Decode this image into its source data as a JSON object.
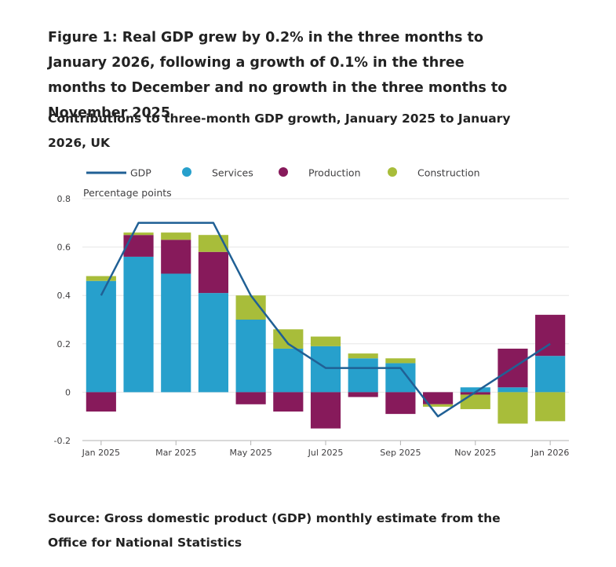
{
  "title": "Figure 1: Real GDP grew by 0.2% in the three months to January 2026, following a growth of 0.1% in the three months to December and no growth in the three months to November 2025",
  "subtitle": "Contributions to three-month GDP growth, January 2025 to January 2026, UK",
  "source": "Source: Gross domestic product (GDP) monthly estimate from the Office for National Statistics",
  "colors": {
    "services": "#27a0cc",
    "production": "#871a5b",
    "construction": "#a8bd3a",
    "gdp": "#206095",
    "grid": "#e6e6e6",
    "axis": "#b3b3b3",
    "text": "#414042"
  },
  "chart_data": {
    "type": "bar",
    "stacked": true,
    "y_unit_label": "Percentage points",
    "ylim": [
      -0.2,
      0.8
    ],
    "yticks": [
      -0.2,
      0,
      0.2,
      0.4,
      0.6,
      0.8
    ],
    "ytick_labels": [
      "-0.2",
      "0",
      "0.2",
      "0.4",
      "0.6",
      "0.8"
    ],
    "categories": [
      "Jan 2025",
      "Feb 2025",
      "Mar 2025",
      "Apr 2025",
      "May 2025",
      "Jun 2025",
      "Jul 2025",
      "Aug 2025",
      "Sep 2025",
      "Oct 2025",
      "Nov 2025",
      "Dec 2025",
      "Jan 2026"
    ],
    "x_tick_labels": [
      "Jan 2025",
      "",
      "Mar 2025",
      "",
      "May 2025",
      "",
      "Jul 2025",
      "",
      "Sep 2025",
      "",
      "Nov 2025",
      "",
      "Jan 2026"
    ],
    "legend": [
      "GDP",
      "Services",
      "Production",
      "Construction"
    ],
    "legend_position": "top",
    "grid": true,
    "series": [
      {
        "name": "Services",
        "kind": "bar",
        "values": [
          0.46,
          0.56,
          0.49,
          0.41,
          0.3,
          0.18,
          0.19,
          0.14,
          0.12,
          0.0,
          0.02,
          0.02,
          0.15
        ]
      },
      {
        "name": "Production",
        "kind": "bar",
        "values": [
          -0.08,
          0.09,
          0.14,
          0.17,
          -0.05,
          -0.08,
          -0.15,
          -0.02,
          -0.09,
          -0.05,
          -0.01,
          0.16,
          0.17
        ]
      },
      {
        "name": "Construction",
        "kind": "bar",
        "values": [
          0.02,
          0.01,
          0.03,
          0.07,
          0.1,
          0.08,
          0.04,
          0.02,
          0.02,
          -0.01,
          -0.06,
          -0.13,
          -0.12
        ]
      },
      {
        "name": "GDP",
        "kind": "line",
        "values": [
          0.4,
          0.7,
          0.7,
          0.7,
          0.4,
          0.2,
          0.1,
          0.1,
          0.1,
          -0.1,
          0.0,
          0.1,
          0.2
        ]
      }
    ]
  }
}
